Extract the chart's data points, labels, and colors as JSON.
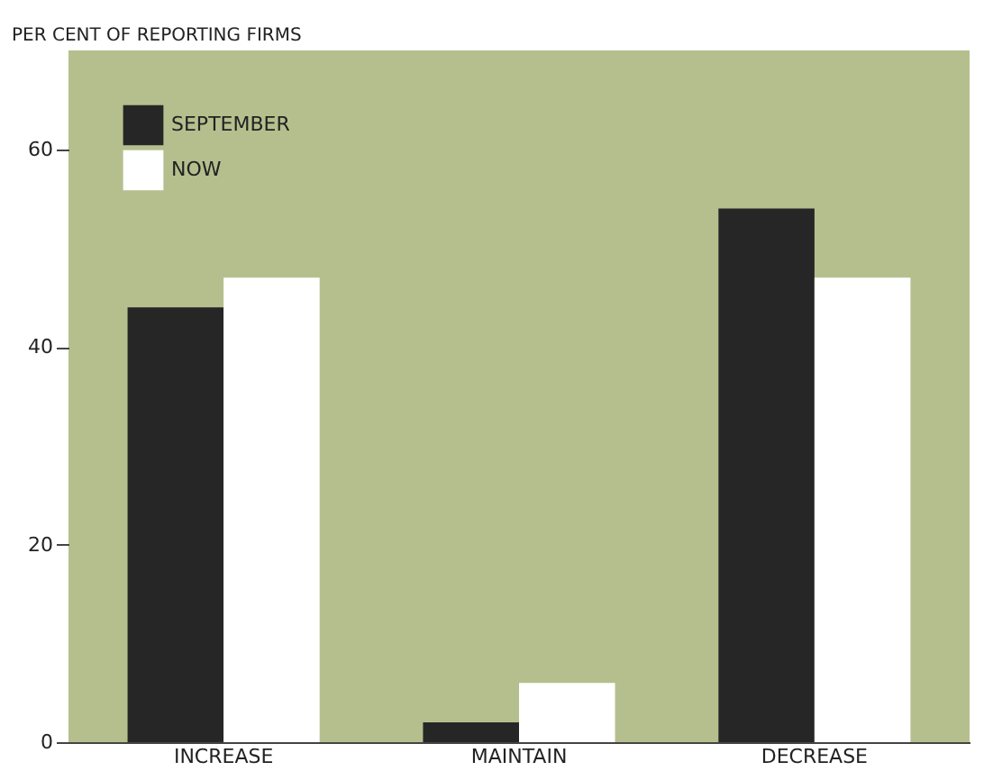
{
  "chart_data": {
    "type": "bar",
    "ylabel": "PER CENT OF REPORTING FIRMS",
    "categories": [
      "INCREASE",
      "MAINTAIN",
      "DECREASE"
    ],
    "series": [
      {
        "name": "SEPTEMBER",
        "color": "#262626",
        "values": [
          44,
          2,
          54
        ]
      },
      {
        "name": "NOW",
        "color": "#ffffff",
        "values": [
          47,
          6,
          47
        ]
      }
    ],
    "ylim": [
      0,
      70
    ],
    "yticks": [
      0,
      20,
      40,
      60
    ],
    "grid": false,
    "legend": "top left"
  }
}
